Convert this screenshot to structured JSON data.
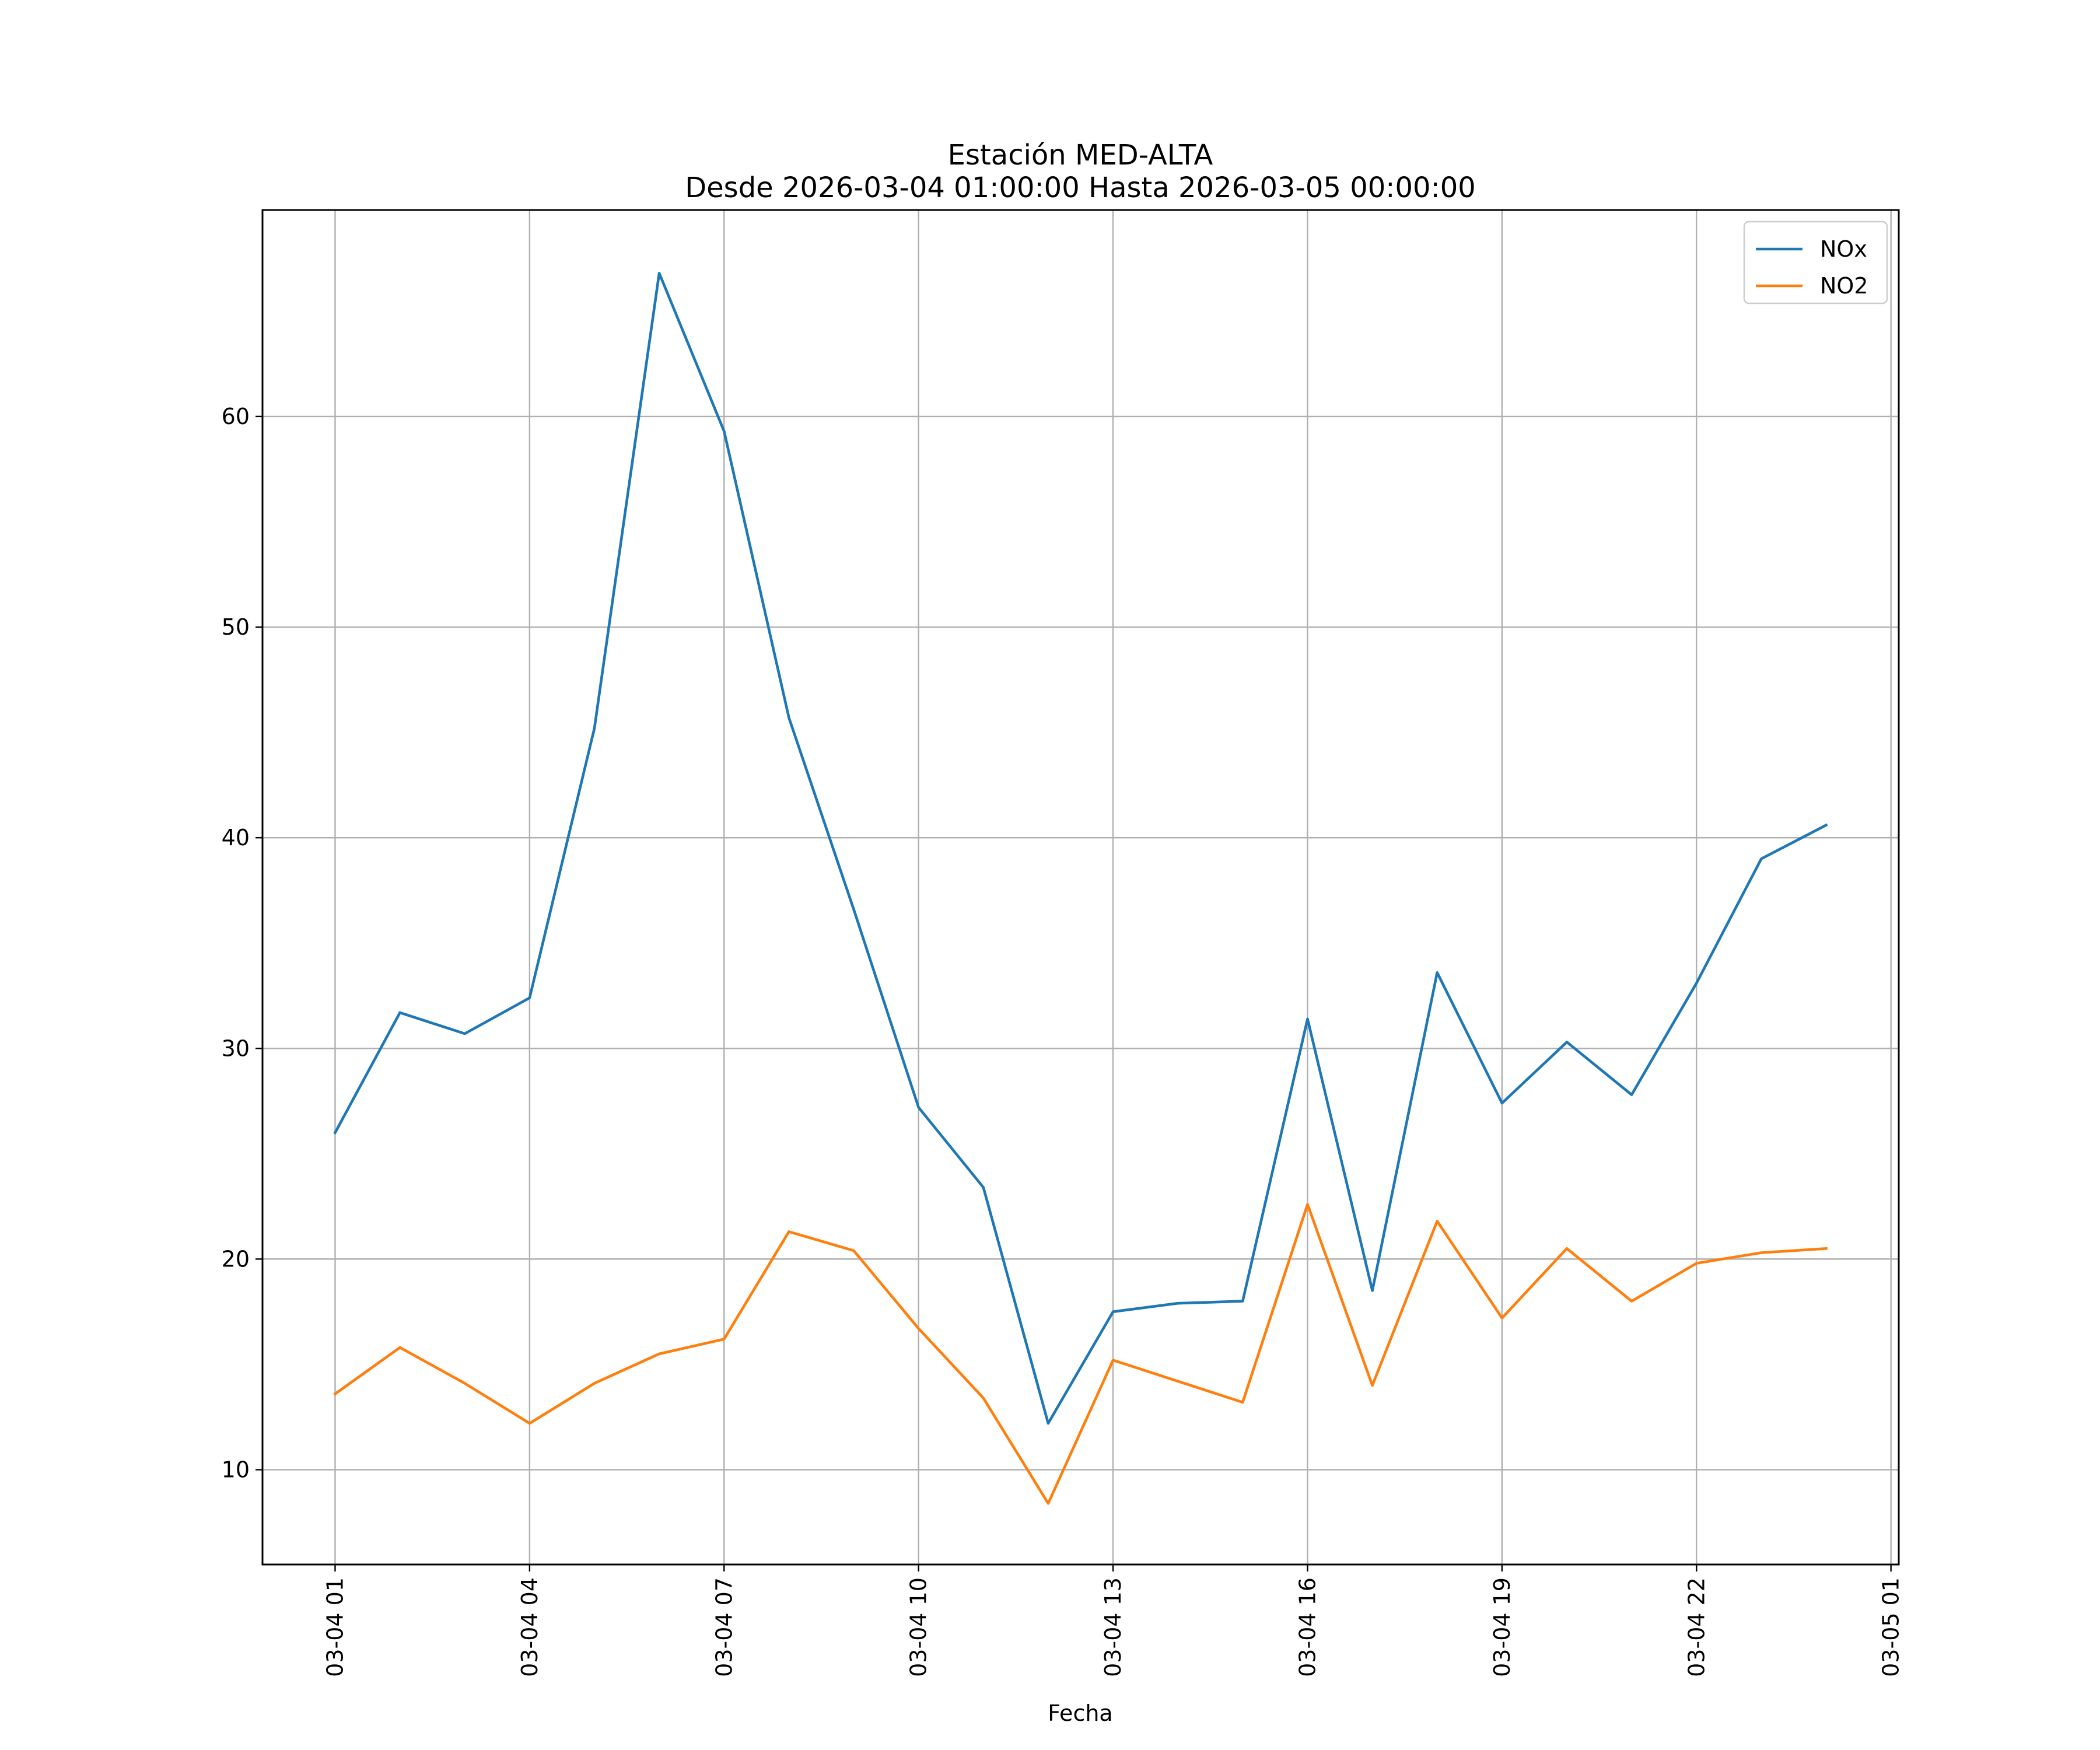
{
  "chart_data": {
    "type": "line",
    "title": "Estación MED-ALTA",
    "subtitle": "Desde 2026-03-04 01:00:00 Hasta 2026-03-05 00:00:00",
    "xlabel": "Fecha",
    "ylabel": "",
    "x": [
      "03-04 01",
      "03-04 02",
      "03-04 03",
      "03-04 04",
      "03-04 05",
      "03-04 06",
      "03-04 07",
      "03-04 08",
      "03-04 09",
      "03-04 10",
      "03-04 11",
      "03-04 12",
      "03-04 13",
      "03-04 14",
      "03-04 15",
      "03-04 16",
      "03-04 17",
      "03-04 18",
      "03-04 19",
      "03-04 20",
      "03-04 21",
      "03-04 22",
      "03-04 23",
      "03-05 00"
    ],
    "x_hours": [
      1,
      2,
      3,
      4,
      5,
      6,
      7,
      8,
      9,
      10,
      11,
      12,
      13,
      14,
      15,
      16,
      17,
      18,
      19,
      20,
      21,
      22,
      23,
      24
    ],
    "xlim": [
      -0.12,
      25.12
    ],
    "xticks": [
      1,
      4,
      7,
      10,
      13,
      16,
      19,
      22,
      25
    ],
    "xtick_labels": [
      "03-04 01",
      "03-04 04",
      "03-04 07",
      "03-04 10",
      "03-04 13",
      "03-04 16",
      "03-04 19",
      "03-04 22",
      "03-05 01"
    ],
    "ylim": [
      5.5,
      69.8
    ],
    "yticks": [
      10,
      20,
      30,
      40,
      50,
      60
    ],
    "ytick_labels": [
      "10",
      "20",
      "30",
      "40",
      "50",
      "60"
    ],
    "grid": true,
    "legend_position": "top-right",
    "series": [
      {
        "name": "NOx",
        "color": "#1f77b4",
        "values": [
          26.0,
          31.7,
          30.7,
          32.4,
          45.2,
          66.8,
          59.3,
          45.7,
          36.6,
          27.2,
          23.4,
          12.2,
          17.5,
          17.9,
          18.0,
          31.4,
          18.5,
          33.6,
          27.4,
          30.3,
          27.8,
          33.1,
          39.0,
          40.6
        ]
      },
      {
        "name": "NO2",
        "color": "#ff7f0e",
        "values": [
          13.6,
          15.8,
          14.1,
          12.2,
          14.1,
          15.5,
          16.2,
          21.3,
          20.4,
          16.7,
          13.4,
          8.4,
          15.2,
          14.2,
          13.2,
          22.6,
          14.0,
          21.8,
          17.2,
          20.5,
          18.0,
          19.8,
          20.3,
          20.5
        ]
      }
    ]
  }
}
